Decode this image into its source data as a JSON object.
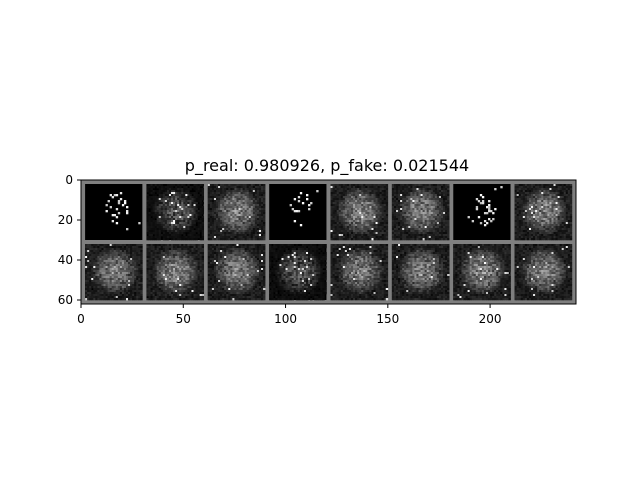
{
  "chart_data": {
    "type": "heatmap",
    "title": "p_real: 0.980926, p_fake: 0.021544",
    "xlabel": "",
    "ylabel": "",
    "xlim": [
      0,
      242
    ],
    "ylim": [
      62,
      0
    ],
    "x_ticks": [
      0,
      50,
      100,
      150,
      200
    ],
    "y_ticks": [
      0,
      20,
      40,
      60
    ],
    "grid": false,
    "legend": "none",
    "colormap": "gray",
    "grid_layout": {
      "rows": 2,
      "cols": 8,
      "tile_size": 28,
      "padding": 2
    },
    "tiles": [
      {
        "row": 0,
        "col": 0,
        "style": "sparse"
      },
      {
        "row": 0,
        "col": 1,
        "style": "partial"
      },
      {
        "row": 0,
        "col": 2,
        "style": "noise"
      },
      {
        "row": 0,
        "col": 3,
        "style": "sparse"
      },
      {
        "row": 0,
        "col": 4,
        "style": "noise"
      },
      {
        "row": 0,
        "col": 5,
        "style": "noise"
      },
      {
        "row": 0,
        "col": 6,
        "style": "sparse"
      },
      {
        "row": 0,
        "col": 7,
        "style": "noise"
      },
      {
        "row": 1,
        "col": 0,
        "style": "noise"
      },
      {
        "row": 1,
        "col": 1,
        "style": "noise"
      },
      {
        "row": 1,
        "col": 2,
        "style": "noise"
      },
      {
        "row": 1,
        "col": 3,
        "style": "partial"
      },
      {
        "row": 1,
        "col": 4,
        "style": "noise"
      },
      {
        "row": 1,
        "col": 5,
        "style": "noise"
      },
      {
        "row": 1,
        "col": 6,
        "style": "noise"
      },
      {
        "row": 1,
        "col": 7,
        "style": "noise"
      }
    ]
  }
}
